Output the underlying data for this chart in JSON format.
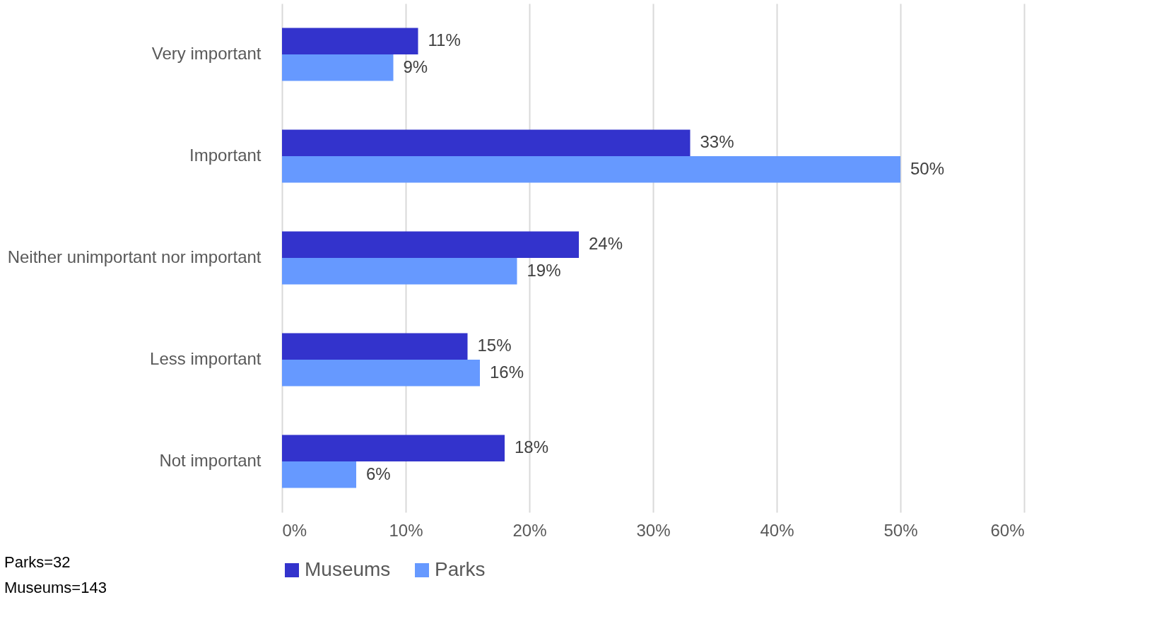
{
  "chart_data": {
    "type": "bar",
    "orientation": "horizontal",
    "categories": [
      "Very important",
      "Important",
      "Neither unimportant nor important",
      "Less important",
      "Not important"
    ],
    "series": [
      {
        "name": "Museums",
        "color": "#3333cc",
        "values": [
          11,
          33,
          24,
          15,
          18
        ],
        "value_labels": [
          "11%",
          "33%",
          "24%",
          "15%",
          "18%"
        ]
      },
      {
        "name": "Parks",
        "color": "#6699ff",
        "values": [
          9,
          50,
          19,
          16,
          6
        ],
        "value_labels": [
          "9%",
          "50%",
          "19%",
          "16%",
          "6%"
        ]
      }
    ],
    "xlim": [
      0,
      60
    ],
    "xticks": [
      {
        "value": 0,
        "label": "0%"
      },
      {
        "value": 10,
        "label": "10%"
      },
      {
        "value": 20,
        "label": "20%"
      },
      {
        "value": 30,
        "label": "30%"
      },
      {
        "value": 40,
        "label": "40%"
      },
      {
        "value": 50,
        "label": "50%"
      },
      {
        "value": 60,
        "label": "60%"
      }
    ],
    "grid": "x",
    "legend": "bottom",
    "annotations": [
      "Parks=32",
      "Museums=143"
    ]
  }
}
